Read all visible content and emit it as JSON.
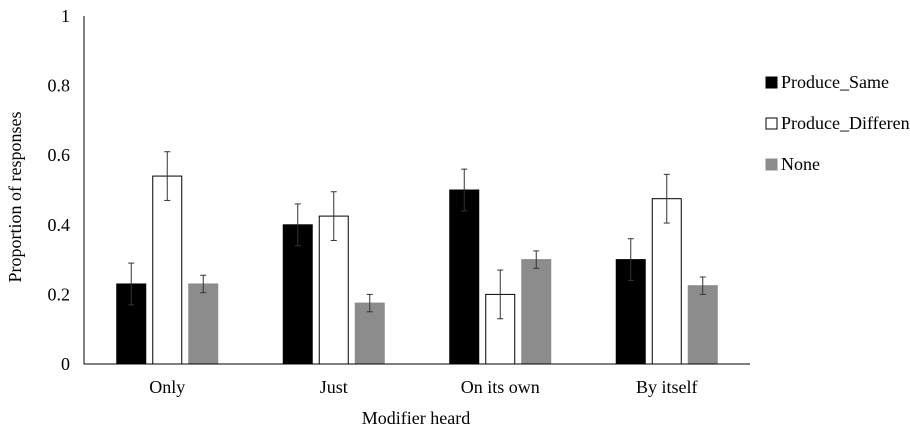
{
  "chart_data": {
    "type": "bar",
    "categories": [
      "Only",
      "Just",
      "On its own",
      "By itself"
    ],
    "series": [
      {
        "name": "Produce_Same",
        "color": "#000000",
        "stroke": "#000000",
        "values": [
          0.23,
          0.4,
          0.5,
          0.3
        ],
        "errors": [
          0.06,
          0.06,
          0.06,
          0.06
        ]
      },
      {
        "name": "Produce_Different",
        "color": "#ffffff",
        "stroke": "#000000",
        "values": [
          0.54,
          0.425,
          0.2,
          0.475
        ],
        "errors": [
          0.07,
          0.07,
          0.07,
          0.07
        ]
      },
      {
        "name": "None",
        "color": "#8c8c8c",
        "stroke": "#8c8c8c",
        "values": [
          0.23,
          0.175,
          0.3,
          0.225
        ],
        "errors": [
          0.025,
          0.025,
          0.025,
          0.025
        ]
      }
    ],
    "xlabel": "Modifier heard",
    "ylabel": "Proportion of responses",
    "ylim": [
      0,
      1
    ],
    "yticks": [
      "0",
      "0.2",
      "0.4",
      "0.6",
      "0.8",
      "1"
    ],
    "ytick_values": [
      0,
      0.2,
      0.4,
      0.6,
      0.8,
      1
    ],
    "grid": false,
    "legend_position": "right"
  }
}
